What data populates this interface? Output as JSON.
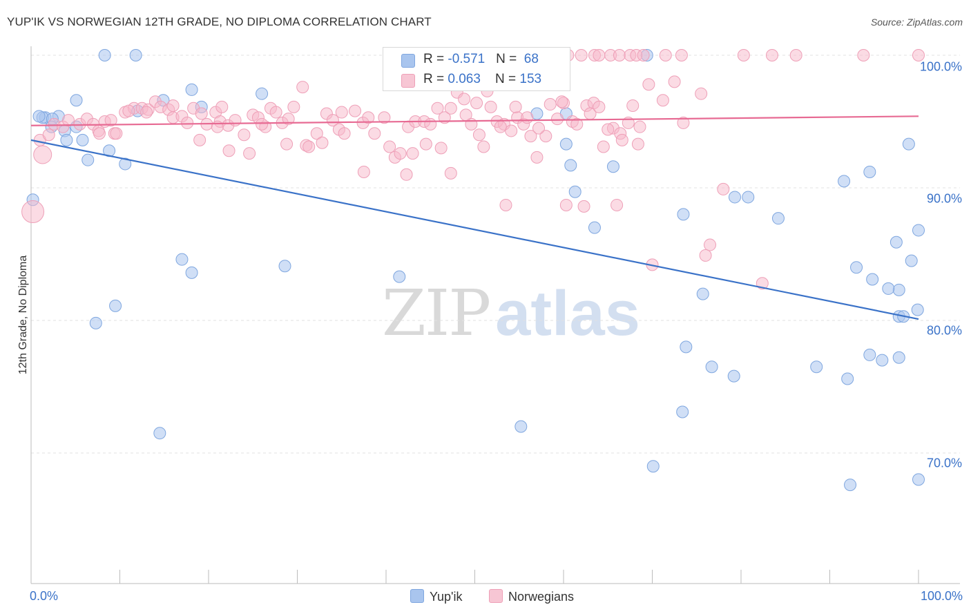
{
  "header": {
    "title": "YUP'IK VS NORWEGIAN 12TH GRADE, NO DIPLOMA CORRELATION CHART",
    "source": "Source: ZipAtlas.com"
  },
  "watermark": {
    "zip": "ZIP",
    "atlas": "atlas"
  },
  "legend_top": {
    "rows": [
      {
        "r_label": "R = ",
        "r_value": "-0.571",
        "n_label": "N = ",
        "n_value": "68",
        "color": "#a9c5ee"
      },
      {
        "r_label": "R = ",
        "r_value": "0.063",
        "n_label": "N = ",
        "n_value": "153",
        "color": "#f7b7c9"
      }
    ]
  },
  "legend_bottom": {
    "items": [
      {
        "label": "Yup'ik",
        "color": "#a9c5ee"
      },
      {
        "label": "Norwegians",
        "color": "#f7b7c9"
      }
    ]
  },
  "colors": {
    "blue": "#3a72c8",
    "blue_fill": "#a9c5ee",
    "pink": "#e76a93",
    "pink_fill": "#f7b7c9",
    "grid": "#e2e2e2",
    "axis": "#bbbbbb"
  },
  "chart_data": {
    "type": "scatter",
    "title": "YUP'IK VS NORWEGIAN 12TH GRADE, NO DIPLOMA CORRELATION CHART",
    "xlabel": "",
    "ylabel": "12th Grade, No Diploma",
    "x_tick_labels": [
      "0.0%",
      "100.0%"
    ],
    "y_tick_labels": [
      "100.0%",
      "90.0%",
      "80.0%",
      "70.0%"
    ],
    "y_tick_values": [
      100,
      90,
      80,
      70
    ],
    "xlim": [
      0,
      100
    ],
    "ylim": [
      59.5,
      100.8
    ],
    "grid": true,
    "legend_position": "bottom",
    "series": [
      {
        "name": "Yup'ik",
        "r": -0.571,
        "n": 68,
        "trend": [
          [
            0,
            93.6
          ],
          [
            100,
            80.1
          ]
        ],
        "points": [
          [
            8.3,
            100
          ],
          [
            11.8,
            100
          ],
          [
            69.4,
            100
          ],
          [
            1.6,
            95.3
          ],
          [
            1.3,
            95.3
          ],
          [
            3.1,
            95.4
          ],
          [
            2.4,
            95.2
          ],
          [
            5.1,
            96.6
          ],
          [
            14.4,
            95.8
          ],
          [
            15.0,
            95.8
          ],
          [
            15.0,
            95.8
          ],
          [
            15.0,
            95.8
          ],
          [
            15.0,
            95.8
          ],
          [
            15.0,
            95.8
          ],
          [
            15.0,
            95.8
          ],
          [
            15.0,
            95.8
          ],
          [
            15.0,
            95.8
          ],
          [
            15.0,
            95.8
          ],
          [
            15.0,
            95.8
          ],
          [
            15.0,
            95.8
          ],
          [
            15.0,
            95.8
          ],
          [
            15.0,
            95.8
          ],
          [
            15.0,
            95.8
          ],
          [
            15.0,
            95.8
          ],
          [
            15.0,
            95.8
          ],
          [
            15.0,
            95.8
          ],
          [
            15.0,
            95.8
          ],
          [
            15.0,
            95.8
          ],
          [
            15.0,
            95.8
          ],
          [
            15.0,
            95.8
          ],
          [
            15.0,
            95.8
          ],
          [
            15.0,
            95.8
          ],
          [
            15.0,
            95.8
          ],
          [
            15.0,
            95.8
          ],
          [
            15.0,
            95.8
          ],
          [
            15.0,
            95.8
          ],
          [
            15.0,
            95.8
          ],
          [
            15.0,
            95.8
          ],
          [
            15.0,
            95.8
          ],
          [
            15.0,
            95.8
          ],
          [
            15.0,
            95.8
          ],
          [
            15.0,
            95.8
          ],
          [
            15.0,
            95.8
          ],
          [
            15.0,
            95.8
          ],
          [
            15.0,
            95.8
          ],
          [
            15.0,
            95.8
          ],
          [
            15.0,
            95.8
          ],
          [
            15.0,
            95.8
          ],
          [
            15.0,
            95.8
          ],
          [
            15.0,
            95.8
          ],
          [
            15.0,
            95.8
          ],
          [
            15.0,
            95.8
          ],
          [
            15.0,
            95.8
          ],
          [
            15.0,
            95.8
          ],
          [
            15.0,
            95.8
          ],
          [
            15.0,
            95.8
          ],
          [
            15.0,
            95.8
          ],
          [
            15.0,
            95.8
          ],
          [
            15.0,
            95.8
          ],
          [
            15.0,
            95.8
          ],
          [
            15.0,
            95.8
          ],
          [
            15.0,
            95.8
          ],
          [
            15.0,
            95.8
          ],
          [
            15.0,
            95.8
          ],
          [
            15.0,
            95.8
          ],
          [
            15.0,
            95.8
          ],
          [
            15.0,
            95.8
          ],
          [
            15.0,
            95.8
          ]
        ]
      },
      {
        "name": "Norwegians",
        "r": 0.063,
        "n": 153,
        "trend": [
          [
            0,
            94.7
          ],
          [
            100,
            95.4
          ]
        ],
        "points": []
      }
    ]
  }
}
